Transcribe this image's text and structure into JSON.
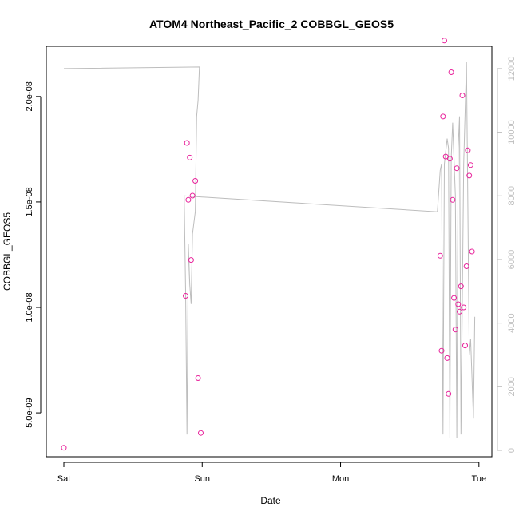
{
  "chart_data": {
    "type": "scatter",
    "title": "ATOM4 Northeast_Pacific_2 COBBGL_GEOS5",
    "xlabel": "Date",
    "ylabel": "COBBGL_GEOS5",
    "x_tick_labels": [
      "Sat",
      "Sun",
      "Mon",
      "Tue"
    ],
    "xlim": [
      0,
      3.03
    ],
    "y_left": {
      "tick_labels": [
        "5.0e-09",
        "1.0e-08",
        "1.5e-08",
        "2.0e-08"
      ],
      "ticks": [
        5e-09,
        1e-08,
        1.5e-08,
        2e-08
      ],
      "ylim": [
        3.3e-09,
        2.2e-08
      ]
    },
    "y_right": {
      "tick_labels": [
        "0",
        "2000",
        "4000",
        "6000",
        "8000",
        "10000",
        "12000"
      ],
      "ticks": [
        0,
        2000,
        4000,
        6000,
        8000,
        10000,
        12000
      ],
      "ylim": [
        0,
        12500
      ]
    },
    "colors": {
      "points": "#e8229b",
      "altitude_line": "#bdbdbd",
      "axis": "#000000"
    },
    "series": [
      {
        "type": "scatter",
        "axis": "left",
        "points": [
          [
            0.0,
            3.35e-09
          ],
          [
            0.88,
            1.055e-08
          ],
          [
            0.89,
            1.78e-08
          ],
          [
            0.9,
            1.51e-08
          ],
          [
            0.91,
            1.71e-08
          ],
          [
            0.92,
            1.225e-08
          ],
          [
            0.93,
            1.53e-08
          ],
          [
            0.95,
            1.6e-08
          ],
          [
            0.97,
            6.65e-09
          ],
          [
            0.99,
            4.05e-09
          ],
          [
            2.72,
            1.245e-08
          ],
          [
            2.73,
            7.95e-09
          ],
          [
            2.74,
            1.905e-08
          ],
          [
            2.75,
            2.265e-08
          ],
          [
            2.76,
            1.715e-08
          ],
          [
            2.77,
            7.6e-09
          ],
          [
            2.78,
            5.9e-09
          ],
          [
            2.79,
            1.705e-08
          ],
          [
            2.8,
            2.115e-08
          ],
          [
            2.81,
            1.51e-08
          ],
          [
            2.82,
            1.045e-08
          ],
          [
            2.83,
            8.95e-09
          ],
          [
            2.84,
            1.66e-08
          ],
          [
            2.85,
            1.015e-08
          ],
          [
            2.86,
            9.8e-09
          ],
          [
            2.87,
            1.1e-08
          ],
          [
            2.88,
            2.005e-08
          ],
          [
            2.89,
            1e-08
          ],
          [
            2.9,
            8.2e-09
          ],
          [
            2.91,
            1.195e-08
          ],
          [
            2.92,
            1.745e-08
          ],
          [
            2.93,
            1.625e-08
          ],
          [
            2.94,
            1.675e-08
          ],
          [
            2.95,
            1.265e-08
          ]
        ]
      },
      {
        "type": "line",
        "axis": "right",
        "points": [
          [
            0.0,
            12000
          ],
          [
            0.98,
            12050
          ],
          [
            0.97,
            11000
          ],
          [
            0.96,
            10500
          ],
          [
            0.95,
            7500
          ],
          [
            0.93,
            6800
          ],
          [
            0.92,
            4600
          ],
          [
            0.91,
            5200
          ],
          [
            0.9,
            6500
          ],
          [
            0.89,
            500
          ],
          [
            0.88,
            5000
          ],
          [
            0.87,
            8000
          ],
          [
            2.7,
            7500
          ],
          [
            2.72,
            8800
          ],
          [
            2.73,
            9000
          ],
          [
            2.74,
            500
          ],
          [
            2.75,
            9000
          ],
          [
            2.77,
            9800
          ],
          [
            2.78,
            9500
          ],
          [
            2.79,
            400
          ],
          [
            2.8,
            9200
          ],
          [
            2.81,
            10300
          ],
          [
            2.83,
            8000
          ],
          [
            2.84,
            400
          ],
          [
            2.85,
            9500
          ],
          [
            2.86,
            10500
          ],
          [
            2.87,
            500
          ],
          [
            2.89,
            9000
          ],
          [
            2.91,
            12200
          ],
          [
            2.93,
            3000
          ],
          [
            2.94,
            3500
          ],
          [
            2.96,
            1000
          ],
          [
            2.97,
            4200
          ]
        ]
      }
    ]
  }
}
